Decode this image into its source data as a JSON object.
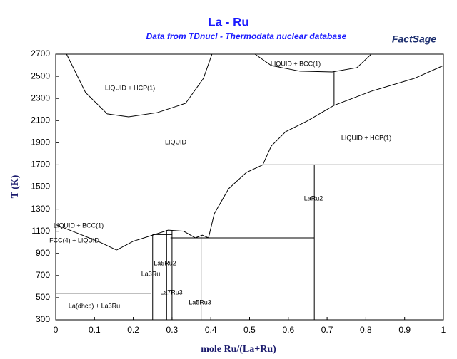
{
  "chart_data": {
    "type": "line",
    "title": "La - Ru",
    "subtitle": "Data from TDnucl - Thermodata nuclear database",
    "logo": "FactSage",
    "x_label": "mole Ru/(La+Ru)",
    "y_label": "T (K)",
    "xlim": [
      0,
      1
    ],
    "ylim": [
      300,
      2700
    ],
    "xticks": [
      0,
      0.1,
      0.2,
      0.3,
      0.4,
      0.5,
      0.6,
      0.7,
      0.8,
      0.9,
      1
    ],
    "yticks": [
      300,
      500,
      700,
      900,
      1100,
      1300,
      1500,
      1700,
      1900,
      2100,
      2300,
      2500,
      2700
    ],
    "color": "#000000",
    "series": [
      {
        "x": [
          0.028,
          0.077,
          0.133,
          0.188,
          0.262,
          0.335,
          0.381,
          0.403
        ],
        "values": [
          2700,
          2353,
          2160,
          2134,
          2172,
          2256,
          2481,
          2700
        ]
      },
      {
        "x": [
          0.514,
          0.556,
          0.63,
          0.713,
          0.777,
          0.814
        ],
        "values": [
          2700,
          2597,
          2546,
          2539,
          2578,
          2700
        ]
      },
      {
        "x": [
          0.718,
          0.718
        ],
        "values": [
          2539,
          2237
        ]
      },
      {
        "x": [
          0.534,
          0.556,
          0.593,
          0.648,
          0.718,
          0.814,
          0.925,
          1
        ],
        "values": [
          1700,
          1870,
          1999,
          2095,
          2237,
          2365,
          2481,
          2597
        ]
      },
      {
        "x": [
          0.534,
          1
        ],
        "values": [
          1700,
          1700
        ]
      },
      {
        "x": [
          0.394,
          0.409,
          0.446,
          0.492,
          0.534
        ],
        "values": [
          1040,
          1259,
          1484,
          1632,
          1700
        ]
      },
      {
        "x": [
          0.667,
          0.667
        ],
        "values": [
          300,
          1700
        ]
      },
      {
        "x": [
          0.296,
          0.667
        ],
        "values": [
          1040,
          1040
        ]
      },
      {
        "x": [
          0,
          0.059,
          0.114,
          0.157
        ],
        "values": [
          1160,
          1078,
          1001,
          930
        ]
      },
      {
        "x": [
          0,
          0.246
        ],
        "values": [
          940,
          940
        ]
      },
      {
        "x": [
          0,
          0.246
        ],
        "values": [
          540,
          540
        ]
      },
      {
        "x": [
          0.157,
          0.2,
          0.246,
          0.29,
          0.33,
          0.36
        ],
        "values": [
          930,
          1010,
          1060,
          1110,
          1100,
          1040
        ]
      },
      {
        "x": [
          0.36,
          0.378,
          0.394
        ],
        "values": [
          1040,
          1065,
          1040
        ]
      },
      {
        "x": [
          0.25,
          0.25
        ],
        "values": [
          300,
          1070
        ]
      },
      {
        "x": [
          0.286,
          0.286
        ],
        "values": [
          300,
          1110
        ]
      },
      {
        "x": [
          0.3,
          0.3
        ],
        "values": [
          300,
          1110
        ]
      },
      {
        "x": [
          0.375,
          0.375
        ],
        "values": [
          300,
          1060
        ]
      },
      {
        "x": [
          0.25,
          0.3
        ],
        "values": [
          1070,
          1070
        ]
      }
    ],
    "annotations": [
      "LIQUID + HCP(1)",
      "LIQUID + BCC(1)",
      "LIQUID",
      "LIQUID + HCP(1)",
      "LaRu2",
      "LIQUID + BCC(1)",
      "FCC(4) + LIQUID",
      "La5Ru2",
      "La3Ru",
      "La7Ru3",
      "La5Ru3",
      "La(dhcp) + La3Ru"
    ]
  }
}
